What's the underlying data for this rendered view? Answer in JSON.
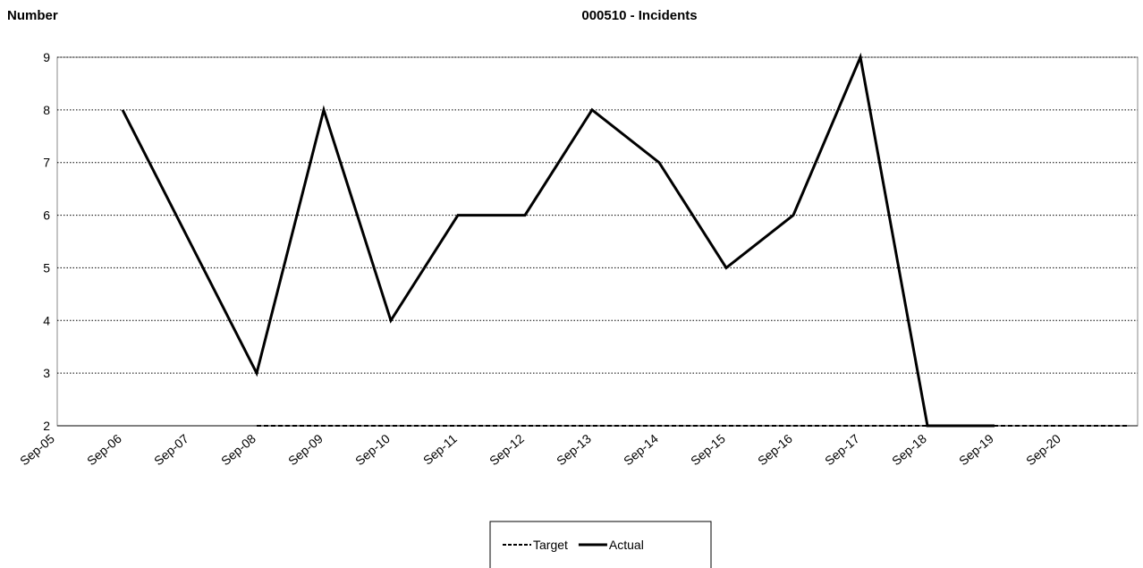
{
  "chart_data": {
    "type": "line",
    "title": "000510 - Incidents",
    "y_label": "Number",
    "categories": [
      "Sep-05",
      "Sep-06",
      "Sep-07",
      "Sep-08",
      "Sep-09",
      "Sep-10",
      "Sep-11",
      "Sep-12",
      "Sep-13",
      "Sep-14",
      "Sep-15",
      "Sep-16",
      "Sep-17",
      "Sep-18",
      "Sep-19",
      "Sep-20",
      null
    ],
    "series": [
      {
        "name": "Target",
        "color": "#000000",
        "dash": true,
        "values": [
          null,
          null,
          null,
          2,
          2,
          2,
          2,
          2,
          2,
          2,
          2,
          2,
          2,
          2,
          2,
          2,
          2
        ]
      },
      {
        "name": "Actual",
        "color": "#000000",
        "dash": false,
        "values": [
          null,
          8,
          5.5,
          3,
          8,
          4,
          6,
          6,
          8,
          7,
          5,
          6,
          9,
          2,
          2,
          null,
          null
        ]
      }
    ],
    "ylim": [
      2,
      9
    ],
    "yticks": [
      2,
      3,
      4,
      5,
      6,
      7,
      8,
      9
    ],
    "grid": true,
    "legend": "bottom"
  }
}
